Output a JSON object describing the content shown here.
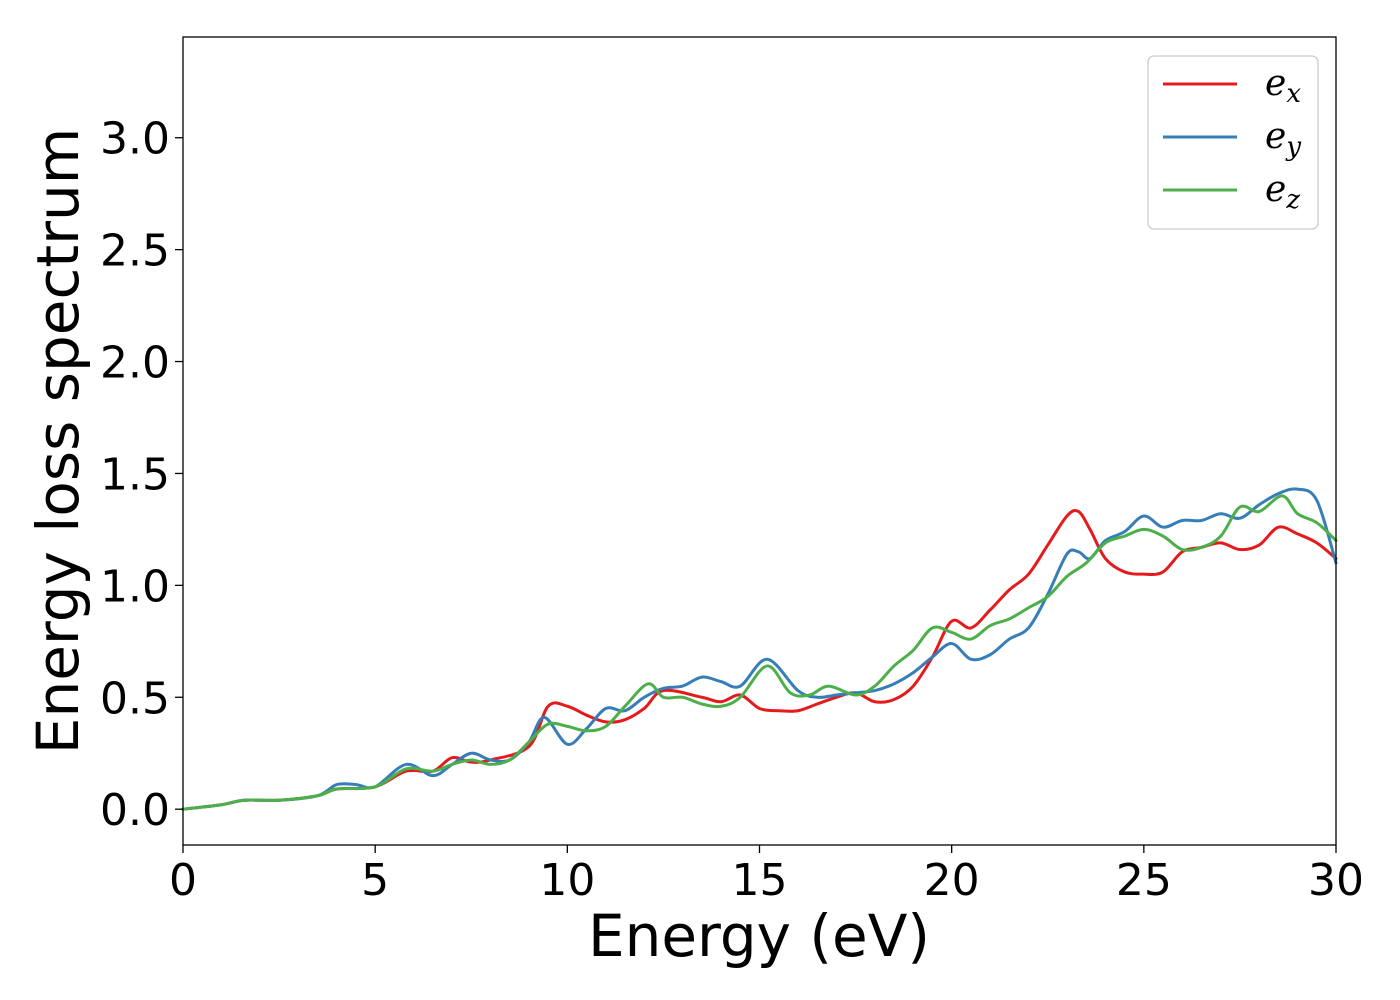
{
  "chart_data": {
    "type": "line",
    "xlabel": "Energy (eV)",
    "ylabel": "Energy loss spectrum",
    "xlim": [
      0,
      30
    ],
    "ylim": [
      -0.16,
      3.45
    ],
    "xticks": [
      0,
      5,
      10,
      15,
      20,
      25,
      30
    ],
    "yticks": [
      0.0,
      0.5,
      1.0,
      1.5,
      2.0,
      2.5,
      3.0
    ],
    "xtick_labels": [
      "0",
      "5",
      "10",
      "15",
      "20",
      "25",
      "30"
    ],
    "ytick_labels": [
      "0.0",
      "0.5",
      "1.0",
      "1.5",
      "2.0",
      "2.5",
      "3.0"
    ],
    "grid": false,
    "legend_position": "top-right",
    "series": [
      {
        "name": "e_x",
        "label_base": "e",
        "label_sub": "x",
        "color": "#e41a1c",
        "x": [
          0,
          1,
          1.6,
          2.5,
          3.5,
          4,
          5,
          5.8,
          6.5,
          7,
          7.5,
          8,
          9,
          9.5,
          10,
          10.5,
          11,
          11.5,
          12,
          12.5,
          13.5,
          14,
          14.5,
          15,
          15.5,
          16,
          16.5,
          17,
          17.5,
          18,
          18.5,
          19,
          19.5,
          20,
          20.5,
          21,
          21.5,
          22,
          22.5,
          23,
          23.3,
          23.6,
          24,
          24.5,
          25,
          25.5,
          26,
          26.5,
          27,
          27.5,
          28,
          28.5,
          29,
          29.5,
          30
        ],
        "y": [
          0,
          0.02,
          0.04,
          0.04,
          0.06,
          0.09,
          0.1,
          0.17,
          0.17,
          0.23,
          0.21,
          0.22,
          0.28,
          0.46,
          0.46,
          0.42,
          0.39,
          0.4,
          0.45,
          0.53,
          0.5,
          0.48,
          0.51,
          0.45,
          0.44,
          0.44,
          0.47,
          0.5,
          0.52,
          0.48,
          0.49,
          0.55,
          0.68,
          0.84,
          0.81,
          0.89,
          0.98,
          1.05,
          1.18,
          1.31,
          1.33,
          1.25,
          1.12,
          1.06,
          1.05,
          1.06,
          1.15,
          1.17,
          1.19,
          1.16,
          1.18,
          1.26,
          1.23,
          1.19,
          1.12
        ]
      },
      {
        "name": "e_y",
        "label_base": "e",
        "label_sub": "y",
        "color": "#377eb8",
        "x": [
          0,
          1,
          1.6,
          2.5,
          3.5,
          4,
          4.5,
          5,
          5.8,
          6.5,
          7,
          7.5,
          8,
          8.5,
          9,
          9.4,
          10,
          10.5,
          11,
          11.5,
          12,
          12.5,
          13,
          13.5,
          14,
          14.5,
          15.2,
          16,
          16.5,
          17,
          17.5,
          18,
          18.5,
          19,
          19.5,
          20,
          20.5,
          21,
          21.5,
          22,
          22.5,
          23,
          23.3,
          23.6,
          24,
          24.5,
          25,
          25.5,
          26,
          26.5,
          27,
          27.5,
          28,
          28.5,
          29,
          29.5,
          30
        ],
        "y": [
          0,
          0.02,
          0.04,
          0.04,
          0.06,
          0.11,
          0.11,
          0.1,
          0.2,
          0.15,
          0.2,
          0.25,
          0.22,
          0.22,
          0.3,
          0.41,
          0.29,
          0.36,
          0.45,
          0.44,
          0.5,
          0.54,
          0.55,
          0.59,
          0.57,
          0.55,
          0.67,
          0.53,
          0.5,
          0.51,
          0.52,
          0.53,
          0.56,
          0.61,
          0.68,
          0.74,
          0.67,
          0.69,
          0.76,
          0.81,
          0.96,
          1.14,
          1.15,
          1.12,
          1.2,
          1.24,
          1.31,
          1.26,
          1.29,
          1.29,
          1.32,
          1.3,
          1.36,
          1.41,
          1.43,
          1.38,
          1.1
        ]
      },
      {
        "name": "e_z",
        "label_base": "e",
        "label_sub": "z",
        "color": "#4daf4a",
        "x": [
          0,
          1,
          1.6,
          2.5,
          3.5,
          4,
          5,
          5.8,
          6.5,
          7,
          7.5,
          8,
          8.5,
          9,
          9.5,
          10,
          10.5,
          11,
          11.5,
          12.1,
          12.5,
          13,
          13.5,
          14,
          14.5,
          15.2,
          15.8,
          16.3,
          16.8,
          17.5,
          18,
          18.5,
          19,
          19.5,
          20,
          20.5,
          21,
          21.5,
          22,
          22.5,
          23,
          23.5,
          24,
          24.5,
          25,
          25.5,
          26,
          26.5,
          27,
          27.5,
          28,
          28.6,
          29,
          29.5,
          30
        ],
        "y": [
          0,
          0.02,
          0.04,
          0.04,
          0.06,
          0.09,
          0.1,
          0.18,
          0.17,
          0.2,
          0.22,
          0.2,
          0.22,
          0.3,
          0.38,
          0.37,
          0.35,
          0.37,
          0.46,
          0.56,
          0.5,
          0.5,
          0.47,
          0.46,
          0.5,
          0.64,
          0.52,
          0.51,
          0.55,
          0.51,
          0.55,
          0.64,
          0.71,
          0.81,
          0.79,
          0.76,
          0.82,
          0.85,
          0.9,
          0.95,
          1.04,
          1.1,
          1.19,
          1.22,
          1.25,
          1.22,
          1.16,
          1.17,
          1.22,
          1.35,
          1.33,
          1.4,
          1.32,
          1.28,
          1.2
        ]
      }
    ]
  }
}
